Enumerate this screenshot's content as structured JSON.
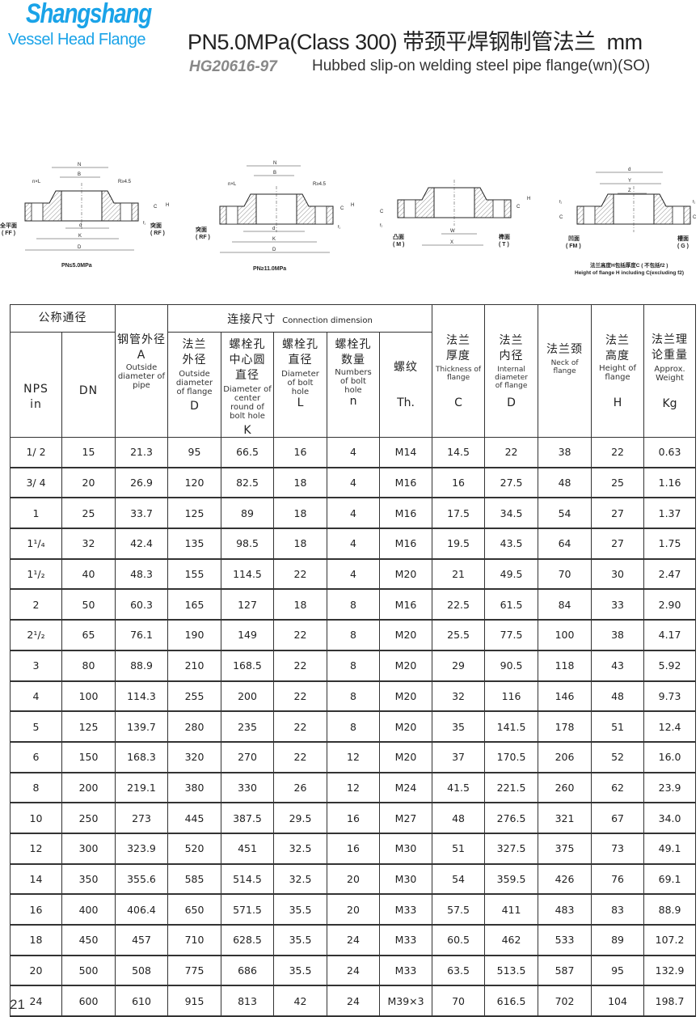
{
  "brand": {
    "name": "Shangshang",
    "tagline": "Vessel Head Flange",
    "color": "#1aa3e8"
  },
  "header": {
    "title": "PN5.0MPa(Class 300) 带颈平焊钢制管法兰",
    "unit": "mm",
    "standard": "HG20616-97",
    "subtitle": "Hubbed slip-on welding steel pipe flange(wn)(SO)"
  },
  "diagrams": {
    "d1": {
      "N": "N",
      "B": "B",
      "nL": "n×L",
      "R": "R≥4.5",
      "d": "d",
      "K": "K",
      "D": "D",
      "C": "C",
      "H": "H",
      "f": "f₁",
      "left": "全平面",
      "left_en": "( FF )",
      "right": "突面",
      "right_en": "( RF )",
      "caption": "PN≤5.0MPa"
    },
    "d2": {
      "N": "N",
      "B": "B",
      "nL": "n×L",
      "R": "R≥4.5",
      "d": "d",
      "K": "K",
      "D": "D",
      "C": "C",
      "H": "H",
      "f": "f₁",
      "left": "突面",
      "left_en": "( RF )",
      "caption": "PN≥11.0MPa"
    },
    "d3": {
      "C": "C",
      "H": "H",
      "f": "f₂",
      "W": "W",
      "X": "X",
      "left": "凸面",
      "left_en": "( M )",
      "right": "榫面",
      "right_en": "( T )"
    },
    "d4": {
      "d": "d",
      "Y": "Y",
      "Z": "Z",
      "f": "f₂",
      "C": "C",
      "left": "凹面",
      "left_en": "( FM )",
      "right": "槽面",
      "right_en": "( G )",
      "note_cn": "法兰高度H包括厚度C ( 不包括f2 )",
      "note_en": "Height of flange H including C(excluding f2)"
    }
  },
  "table": {
    "group_nominal": "公称通径",
    "group_connection_cn": "连接尺寸",
    "group_connection_en": "Connection dimension",
    "nps": {
      "cn": "NPS",
      "en": "in"
    },
    "dn": "DN",
    "pipe_od": {
      "cn": "钢管外径",
      "sym": "A",
      "en": "Outside diameter of pipe"
    },
    "flange_od": {
      "cn": "法兰外径",
      "en": "Outside diameter of flange",
      "sym": "D"
    },
    "bolt_circle": {
      "cn": "螺栓孔中心圆直径",
      "en": "Diameter of center round of bolt hole",
      "sym": "K"
    },
    "bolt_hole": {
      "cn": "螺栓孔直径",
      "en": "Diameter of bolt hole",
      "sym": "L"
    },
    "bolt_num": {
      "cn": "螺栓孔数量",
      "en": "Numbers of bolt hole",
      "sym": "n"
    },
    "thread": {
      "cn": "螺纹",
      "sym": "Th."
    },
    "thickness": {
      "cn": "法兰厚度",
      "en": "Thickness of flange",
      "sym": "C"
    },
    "internal": {
      "cn": "法兰内径",
      "en": "Internal diameter of flange",
      "sym": "D"
    },
    "neck": {
      "cn": "法兰颈",
      "en": "Neck of flange"
    },
    "height": {
      "cn": "法兰高度",
      "en": "Height of flange",
      "sym": "H"
    },
    "weight": {
      "cn": "法兰理论重量",
      "en": "Approx. Weight",
      "sym": "Kg"
    },
    "rows": [
      [
        "1/ 2",
        "15",
        "21.3",
        "95",
        "66.5",
        "16",
        "4",
        "M14",
        "14.5",
        "22",
        "38",
        "22",
        "0.63"
      ],
      [
        "3/ 4",
        "20",
        "26.9",
        "120",
        "82.5",
        "18",
        "4",
        "M16",
        "16",
        "27.5",
        "48",
        "25",
        "1.16"
      ],
      [
        "1",
        "25",
        "33.7",
        "125",
        "89",
        "18",
        "4",
        "M16",
        "17.5",
        "34.5",
        "54",
        "27",
        "1.37"
      ],
      [
        "1¹/₄",
        "32",
        "42.4",
        "135",
        "98.5",
        "18",
        "4",
        "M16",
        "19.5",
        "43.5",
        "64",
        "27",
        "1.75"
      ],
      [
        "1¹/₂",
        "40",
        "48.3",
        "155",
        "114.5",
        "22",
        "4",
        "M20",
        "21",
        "49.5",
        "70",
        "30",
        "2.47"
      ],
      [
        "2",
        "50",
        "60.3",
        "165",
        "127",
        "18",
        "8",
        "M16",
        "22.5",
        "61.5",
        "84",
        "33",
        "2.90"
      ],
      [
        "2¹/₂",
        "65",
        "76.1",
        "190",
        "149",
        "22",
        "8",
        "M20",
        "25.5",
        "77.5",
        "100",
        "38",
        "4.17"
      ],
      [
        "3",
        "80",
        "88.9",
        "210",
        "168.5",
        "22",
        "8",
        "M20",
        "29",
        "90.5",
        "118",
        "43",
        "5.92"
      ],
      [
        "4",
        "100",
        "114.3",
        "255",
        "200",
        "22",
        "8",
        "M20",
        "32",
        "116",
        "146",
        "48",
        "9.73"
      ],
      [
        "5",
        "125",
        "139.7",
        "280",
        "235",
        "22",
        "8",
        "M20",
        "35",
        "141.5",
        "178",
        "51",
        "12.4"
      ],
      [
        "6",
        "150",
        "168.3",
        "320",
        "270",
        "22",
        "12",
        "M20",
        "37",
        "170.5",
        "206",
        "52",
        "16.0"
      ],
      [
        "8",
        "200",
        "219.1",
        "380",
        "330",
        "26",
        "12",
        "M24",
        "41.5",
        "221.5",
        "260",
        "62",
        "23.9"
      ],
      [
        "10",
        "250",
        "273",
        "445",
        "387.5",
        "29.5",
        "16",
        "M27",
        "48",
        "276.5",
        "321",
        "67",
        "34.0"
      ],
      [
        "12",
        "300",
        "323.9",
        "520",
        "451",
        "32.5",
        "16",
        "M30",
        "51",
        "327.5",
        "375",
        "73",
        "49.1"
      ],
      [
        "14",
        "350",
        "355.6",
        "585",
        "514.5",
        "32.5",
        "20",
        "M30",
        "54",
        "359.5",
        "426",
        "76",
        "69.1"
      ],
      [
        "16",
        "400",
        "406.4",
        "650",
        "571.5",
        "35.5",
        "20",
        "M33",
        "57.5",
        "411",
        "483",
        "83",
        "88.9"
      ],
      [
        "18",
        "450",
        "457",
        "710",
        "628.5",
        "35.5",
        "24",
        "M33",
        "60.5",
        "462",
        "533",
        "89",
        "107.2"
      ],
      [
        "20",
        "500",
        "508",
        "775",
        "686",
        "35.5",
        "24",
        "M33",
        "63.5",
        "513.5",
        "587",
        "95",
        "132.9"
      ],
      [
        "24",
        "600",
        "610",
        "915",
        "813",
        "42",
        "24",
        "M39×3",
        "70",
        "616.5",
        "702",
        "104",
        "198.7"
      ]
    ]
  },
  "page_number": "21"
}
